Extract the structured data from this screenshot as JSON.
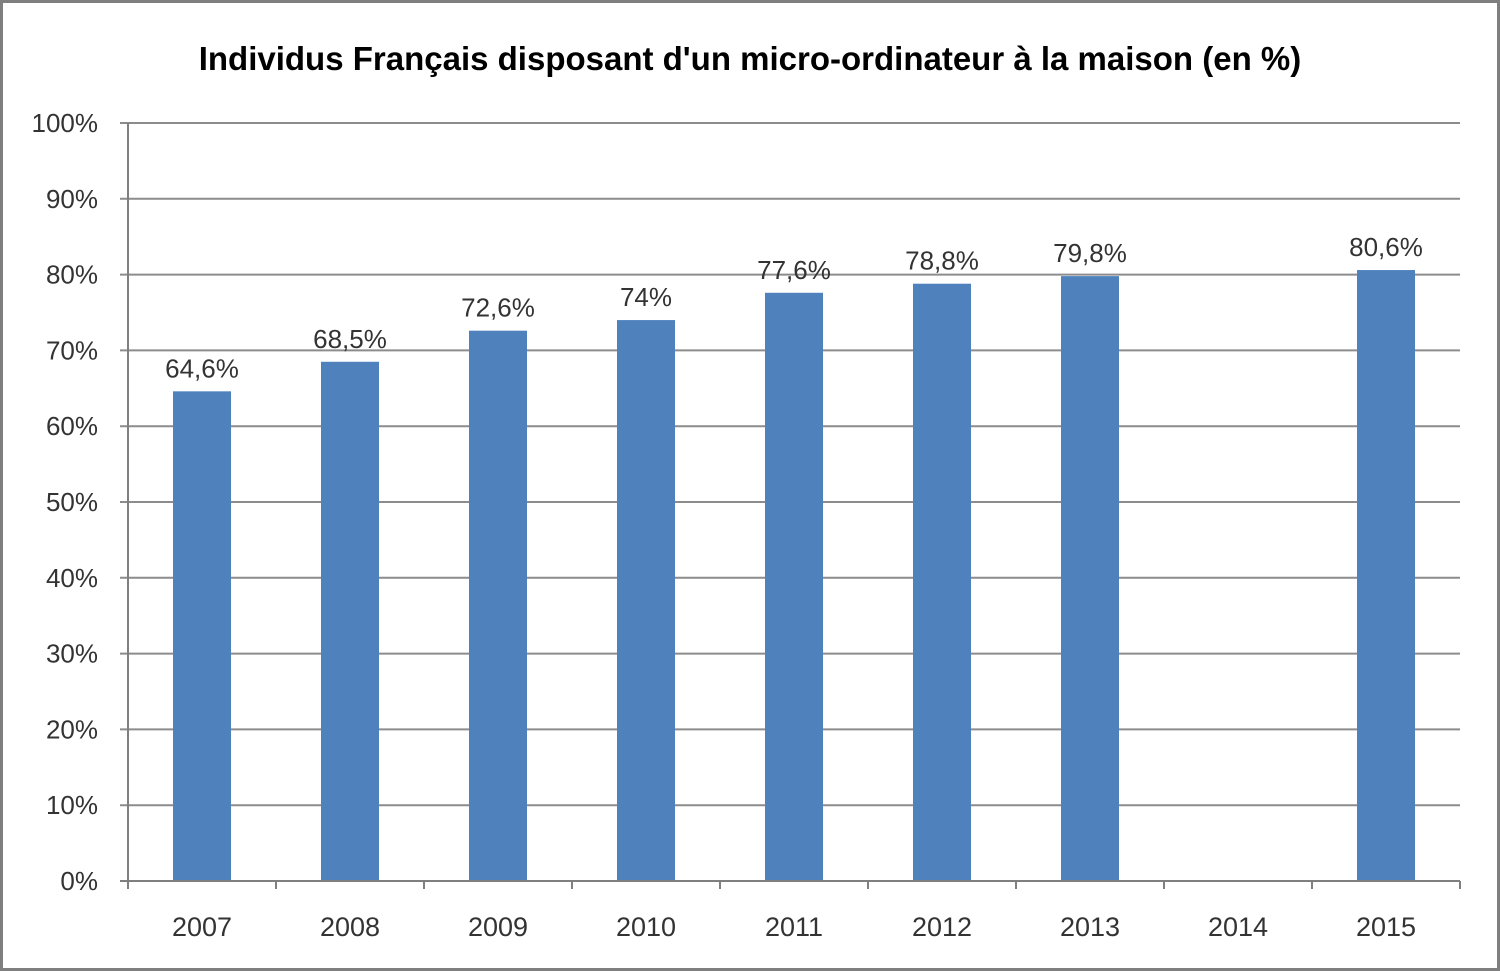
{
  "chart_data": {
    "type": "bar",
    "title": "Individus Français disposant d'un micro-ordinateur à la maison (en %)",
    "xlabel": "",
    "ylabel": "",
    "categories": [
      "2007",
      "2008",
      "2009",
      "2010",
      "2011",
      "2012",
      "2013",
      "2014",
      "2015"
    ],
    "values": [
      64.6,
      68.5,
      72.6,
      74,
      77.6,
      78.8,
      79.8,
      null,
      80.6
    ],
    "value_labels": [
      "64,6%",
      "68,5%",
      "72,6%",
      "74%",
      "77,6%",
      "78,8%",
      "79,8%",
      "",
      "80,6%"
    ],
    "ylim": [
      0,
      100
    ],
    "yticks": [
      0,
      10,
      20,
      30,
      40,
      50,
      60,
      70,
      80,
      90,
      100
    ],
    "ytick_labels": [
      "0%",
      "10%",
      "20%",
      "30%",
      "40%",
      "50%",
      "60%",
      "70%",
      "80%",
      "90%",
      "100%"
    ],
    "grid": true,
    "legend": "none",
    "colors": {
      "bar": "#4f81bd",
      "grid": "#8c8c8c",
      "axis": "#7f7f7f"
    }
  }
}
